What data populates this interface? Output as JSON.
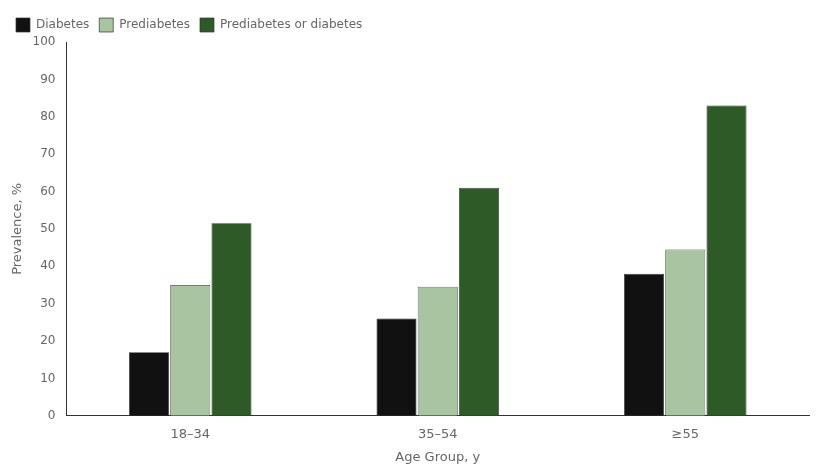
{
  "chart_data": {
    "type": "bar",
    "xlabel": "Age Group, y",
    "ylabel": "Prevalence, %",
    "categories": [
      "18–34",
      "35–54",
      "≥55"
    ],
    "series": [
      {
        "name": "Diabetes",
        "color": "#111111",
        "values": [
          17,
          26,
          38
        ]
      },
      {
        "name": "Prediabetes",
        "color": "#a8c4a0",
        "values": [
          35,
          34.5,
          44.5
        ]
      },
      {
        "name": "Prediabetes or diabetes",
        "color": "#2d5a27",
        "values": [
          51.5,
          61,
          83
        ]
      }
    ],
    "ylim": [
      0,
      100
    ],
    "yticks": [
      0,
      10,
      20,
      30,
      40,
      50,
      60,
      70,
      80,
      90,
      100
    ],
    "grid": false,
    "legend": "upper left"
  }
}
